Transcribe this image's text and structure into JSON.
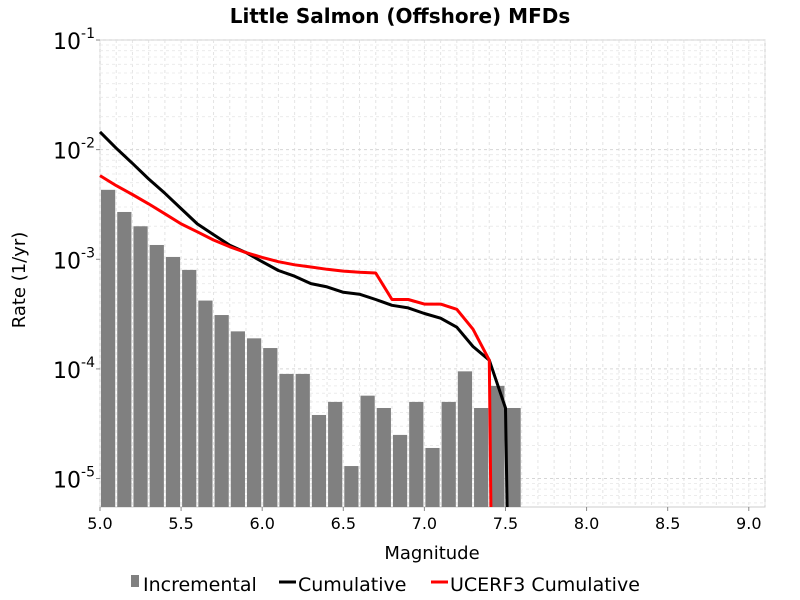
{
  "chart_data": {
    "type": "bar",
    "title": "Little Salmon (Offshore) MFDs",
    "xlabel": "Magnitude",
    "ylabel": "Rate (1/yr)",
    "xlim": [
      5.0,
      9.1
    ],
    "ylim": [
      5.5e-06,
      0.1
    ],
    "yscale": "log",
    "grid": true,
    "legend_position": "bottom",
    "x_ticks": [
      "5.0",
      "5.5",
      "6.0",
      "6.5",
      "7.0",
      "7.5",
      "8.0",
      "8.5",
      "9.0"
    ],
    "x_tick_values": [
      5.0,
      5.5,
      6.0,
      6.5,
      7.0,
      7.5,
      8.0,
      8.5,
      9.0
    ],
    "y_ticks": [
      {
        "value": 1e-05,
        "base": "10",
        "exp": "-5"
      },
      {
        "value": 0.0001,
        "base": "10",
        "exp": "-4"
      },
      {
        "value": 0.001,
        "base": "10",
        "exp": "-3"
      },
      {
        "value": 0.01,
        "base": "10",
        "exp": "-2"
      },
      {
        "value": 0.1,
        "base": "10",
        "exp": "-1"
      }
    ],
    "series": [
      {
        "name": "Incremental",
        "kind": "bar",
        "color": "#808080",
        "x": [
          5.05,
          5.15,
          5.25,
          5.35,
          5.45,
          5.55,
          5.65,
          5.75,
          5.85,
          5.95,
          6.05,
          6.15,
          6.25,
          6.35,
          6.45,
          6.55,
          6.65,
          6.75,
          6.85,
          6.95,
          7.05,
          7.15,
          7.25,
          7.35,
          7.45,
          7.55
        ],
        "values": [
          0.0043,
          0.0027,
          0.002,
          0.00135,
          0.00105,
          0.0008,
          0.00042,
          0.00031,
          0.00022,
          0.00019,
          0.000155,
          9e-05,
          9e-05,
          3.8e-05,
          5e-05,
          1.3e-05,
          5.7e-05,
          4.4e-05,
          2.5e-05,
          5e-05,
          1.9e-05,
          5e-05,
          9.5e-05,
          4.4e-05,
          7e-05,
          4.4e-05
        ]
      },
      {
        "name": "Cumulative",
        "kind": "line",
        "color": "#000000",
        "x": [
          5.0,
          5.1,
          5.2,
          5.3,
          5.4,
          5.5,
          5.6,
          5.7,
          5.8,
          5.9,
          6.0,
          6.1,
          6.2,
          6.3,
          6.4,
          6.5,
          6.6,
          6.7,
          6.8,
          6.9,
          7.0,
          7.1,
          7.2,
          7.3,
          7.4,
          7.5,
          7.51
        ],
        "values": [
          0.0145,
          0.0103,
          0.0075,
          0.0054,
          0.004,
          0.0029,
          0.0021,
          0.00168,
          0.00134,
          0.00115,
          0.00095,
          0.00079,
          0.0007,
          0.0006,
          0.00056,
          0.0005,
          0.00048,
          0.00043,
          0.00038,
          0.00036,
          0.00032,
          0.00029,
          0.00024,
          0.00016,
          0.00012,
          4.4e-05,
          5.5e-06
        ]
      },
      {
        "name": "UCERF3 Cumulative",
        "kind": "line",
        "color": "#ff0000",
        "x": [
          5.0,
          5.1,
          5.2,
          5.3,
          5.4,
          5.5,
          5.6,
          5.7,
          5.8,
          5.9,
          6.0,
          6.1,
          6.2,
          6.3,
          6.4,
          6.5,
          6.6,
          6.7,
          6.8,
          6.9,
          7.0,
          7.1,
          7.2,
          7.3,
          7.4,
          7.41
        ],
        "values": [
          0.0058,
          0.0047,
          0.0039,
          0.0032,
          0.0026,
          0.0021,
          0.00178,
          0.0015,
          0.0013,
          0.00115,
          0.00104,
          0.00095,
          0.00089,
          0.00085,
          0.00081,
          0.00078,
          0.00076,
          0.00075,
          0.00043,
          0.00043,
          0.00039,
          0.00039,
          0.00035,
          0.00023,
          0.00012,
          5.5e-06
        ]
      }
    ]
  }
}
